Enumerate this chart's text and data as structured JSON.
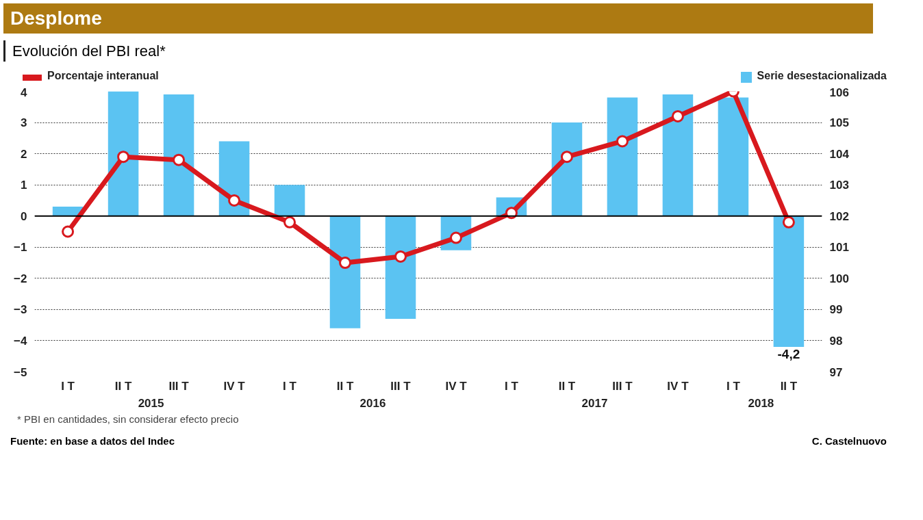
{
  "chart_data": {
    "type": "bar",
    "title": "Desplome",
    "subtitle": "Evolución del PBI real*",
    "categories": [
      "I T",
      "II T",
      "III T",
      "IV T",
      "I T",
      "II T",
      "III T",
      "IV T",
      "I T",
      "II T",
      "III T",
      "IV T",
      "I T",
      "II T"
    ],
    "series": [
      {
        "name": "Serie desestacionalizada",
        "color": "#5bc3f2",
        "values": [
          0.3,
          4.0,
          3.9,
          2.4,
          1.0,
          -3.6,
          -3.3,
          -1.1,
          0.6,
          3.0,
          3.8,
          3.9,
          3.8,
          -4.2
        ],
        "value_labels": [
          null,
          null,
          null,
          null,
          null,
          null,
          null,
          null,
          null,
          null,
          null,
          null,
          null,
          "-4,2"
        ]
      },
      {
        "name": "Porcentaje interanual",
        "type": "line",
        "axis": "y2",
        "color": "#d8191e",
        "marker": "circle",
        "values": [
          101.5,
          103.9,
          103.8,
          102.5,
          101.8,
          100.5,
          100.7,
          101.3,
          102.1,
          103.9,
          104.4,
          105.2,
          106.0,
          101.8
        ]
      }
    ],
    "ylim": [
      -5,
      4
    ],
    "yticks": [
      -5,
      -4,
      -3,
      -2,
      -1,
      0,
      1,
      2,
      3,
      4
    ],
    "y2lim": [
      97,
      106
    ],
    "y2ticks": [
      97,
      98,
      99,
      100,
      101,
      102,
      103,
      104,
      105,
      106
    ],
    "ref_lines": [
      {
        "axis": "y",
        "value": 0,
        "color": "#000000"
      }
    ],
    "grid": "y",
    "legend": "top",
    "line_style": "solid",
    "annotations": [
      "2015",
      "2016",
      "2017",
      "2018",
      "* PBI en cantidades, sin considerar efecto precio",
      "Fuente: en base a datos del Indec",
      "C. Castelnuovo"
    ]
  }
}
